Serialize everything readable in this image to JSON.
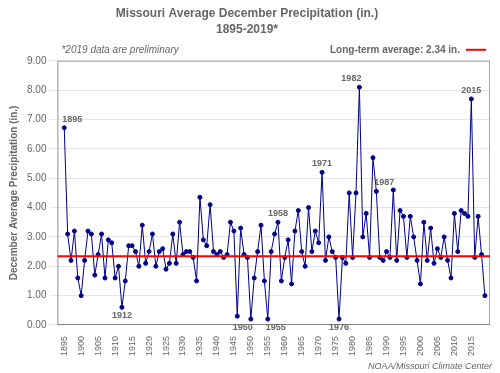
{
  "chart_data": {
    "type": "line",
    "title": "Missouri Average December Precipitation (in.)",
    "subtitle": "1895-2019*",
    "ylabel": "December Average Precipitation (in.)",
    "x": [
      1895,
      1896,
      1897,
      1898,
      1899,
      1900,
      1901,
      1902,
      1903,
      1904,
      1905,
      1906,
      1907,
      1908,
      1909,
      1910,
      1911,
      1912,
      1913,
      1914,
      1915,
      1916,
      1917,
      1918,
      1919,
      1920,
      1921,
      1922,
      1923,
      1924,
      1925,
      1926,
      1927,
      1928,
      1929,
      1930,
      1931,
      1932,
      1933,
      1934,
      1935,
      1936,
      1937,
      1938,
      1939,
      1940,
      1941,
      1942,
      1943,
      1944,
      1945,
      1946,
      1947,
      1948,
      1949,
      1950,
      1951,
      1952,
      1953,
      1954,
      1955,
      1956,
      1957,
      1958,
      1959,
      1960,
      1961,
      1962,
      1963,
      1964,
      1965,
      1966,
      1967,
      1968,
      1969,
      1970,
      1971,
      1972,
      1973,
      1974,
      1975,
      1976,
      1977,
      1978,
      1979,
      1980,
      1981,
      1982,
      1983,
      1984,
      1985,
      1986,
      1987,
      1988,
      1989,
      1990,
      1991,
      1992,
      1993,
      1994,
      1995,
      1996,
      1997,
      1998,
      1999,
      2000,
      2001,
      2002,
      2003,
      2004,
      2005,
      2006,
      2007,
      2008,
      2009,
      2010,
      2011,
      2012,
      2013,
      2014,
      2015,
      2016,
      2017,
      2018,
      2019
    ],
    "values": [
      6.72,
      3.1,
      2.2,
      3.2,
      1.6,
      1.0,
      2.2,
      3.2,
      3.1,
      1.7,
      2.4,
      3.1,
      1.6,
      2.9,
      2.8,
      1.6,
      2.0,
      0.6,
      1.5,
      2.7,
      2.7,
      2.5,
      2.0,
      3.4,
      2.1,
      2.5,
      3.1,
      2.0,
      2.5,
      2.6,
      1.9,
      2.1,
      3.1,
      2.1,
      3.5,
      2.4,
      2.5,
      2.5,
      2.3,
      1.5,
      4.35,
      2.9,
      2.7,
      4.1,
      2.5,
      2.4,
      2.5,
      2.3,
      2.4,
      3.5,
      3.2,
      0.3,
      3.3,
      2.4,
      2.3,
      0.2,
      1.6,
      2.5,
      3.4,
      1.5,
      0.2,
      2.5,
      3.1,
      3.5,
      1.5,
      2.3,
      2.9,
      1.4,
      3.2,
      3.9,
      2.5,
      2.0,
      4.0,
      2.5,
      3.2,
      2.8,
      5.2,
      2.2,
      3.0,
      2.5,
      2.3,
      0.2,
      2.3,
      2.1,
      4.5,
      2.3,
      4.5,
      8.1,
      3.0,
      3.8,
      2.3,
      5.7,
      4.55,
      2.3,
      2.2,
      2.5,
      2.3,
      4.6,
      2.2,
      3.9,
      3.7,
      2.3,
      3.7,
      3.0,
      2.2,
      1.4,
      3.5,
      2.2,
      3.3,
      2.1,
      2.6,
      2.3,
      3.0,
      2.2,
      1.6,
      3.8,
      2.5,
      3.9,
      3.8,
      3.7,
      7.7,
      2.3,
      3.7,
      2.4,
      1.0
    ],
    "color": "#00008B",
    "marker": "circle",
    "xlim": [
      1893,
      2020.5
    ],
    "xticks": [
      1895,
      1900,
      1905,
      1910,
      1915,
      1920,
      1925,
      1930,
      1935,
      1940,
      1945,
      1950,
      1955,
      1960,
      1965,
      1970,
      1975,
      1980,
      1985,
      1990,
      1995,
      2000,
      2005,
      2010,
      2015
    ],
    "ylim": [
      0.0,
      9.0
    ],
    "yticks": [
      {
        "value": 0,
        "label": "0.00"
      },
      {
        "value": 1,
        "label": "1.00"
      },
      {
        "value": 2,
        "label": "2.00"
      },
      {
        "value": 3,
        "label": "3.00"
      },
      {
        "value": 4,
        "label": "4.00"
      },
      {
        "value": 5,
        "label": "5.00"
      },
      {
        "value": 6,
        "label": "6.00"
      },
      {
        "value": 7,
        "label": "7.00"
      },
      {
        "value": 8,
        "label": "8.00"
      },
      {
        "value": 9,
        "label": "9.00"
      }
    ],
    "grid": "y",
    "reference_line": {
      "value": 2.34,
      "color": "#FF0000"
    },
    "annotations": [
      {
        "text": "1895",
        "x": 1895
      },
      {
        "text": "1912",
        "x": 1912
      },
      {
        "text": "1950",
        "x": 1950
      },
      {
        "text": "1955",
        "x": 1955
      },
      {
        "text": "1958",
        "x": 1958
      },
      {
        "text": "1971",
        "x": 1971
      },
      {
        "text": "1976",
        "x": 1976
      },
      {
        "text": "1982",
        "x": 1982
      },
      {
        "text": "1987",
        "x": 1987
      },
      {
        "text": "2015",
        "x": 2015
      }
    ],
    "notes": [
      "*2019 data are preliminary",
      "Long-term average: 2.34 in."
    ],
    "credit": "NOAA/Missouri Climate Center"
  }
}
